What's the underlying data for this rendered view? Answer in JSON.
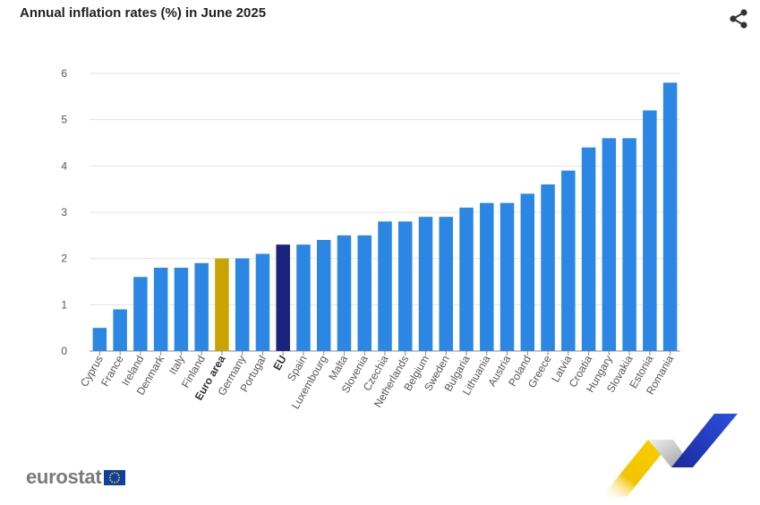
{
  "header": {
    "title": "Annual inflation rates (%) in June 2025",
    "share_icon": "share-icon"
  },
  "branding": {
    "logo_text": "eurostat",
    "flag_icon": "eu-flag-icon",
    "ribbon_icon": "eurostat-ribbon-icon"
  },
  "colors": {
    "bar": "#2b87e3",
    "euro_area": "#c9a400",
    "eu": "#1a2480",
    "grid": "#e3e3e3",
    "axis_text": "#555555"
  },
  "chart_data": {
    "type": "bar",
    "title": "Annual inflation rates (%) in June 2025",
    "xlabel": "",
    "ylabel": "",
    "ylim": [
      0,
      6
    ],
    "yticks": [
      0,
      1,
      2,
      3,
      4,
      5,
      6
    ],
    "grid": true,
    "categories": [
      "Cyprus",
      "France",
      "Ireland",
      "Denmark",
      "Italy",
      "Finland",
      "Euro area",
      "Germany",
      "Portugal",
      "EU",
      "Spain",
      "Luxembourg",
      "Malta",
      "Slovenia",
      "Czechia",
      "Netherlands",
      "Belgium",
      "Sweden",
      "Bulgaria",
      "Lithuania",
      "Austria",
      "Poland",
      "Greece",
      "Latvia",
      "Croatia",
      "Hungary",
      "Slovakia",
      "Estonia",
      "Romania"
    ],
    "values": [
      0.5,
      0.9,
      1.6,
      1.8,
      1.8,
      1.9,
      2.0,
      2.0,
      2.1,
      2.3,
      2.3,
      2.4,
      2.5,
      2.5,
      2.8,
      2.8,
      2.9,
      2.9,
      3.1,
      3.2,
      3.2,
      3.4,
      3.6,
      3.9,
      4.4,
      4.6,
      4.6,
      5.2,
      5.8
    ],
    "highlight": {
      "Euro area": "euro_area",
      "EU": "eu"
    },
    "bold_labels": [
      "Euro area",
      "EU"
    ]
  }
}
